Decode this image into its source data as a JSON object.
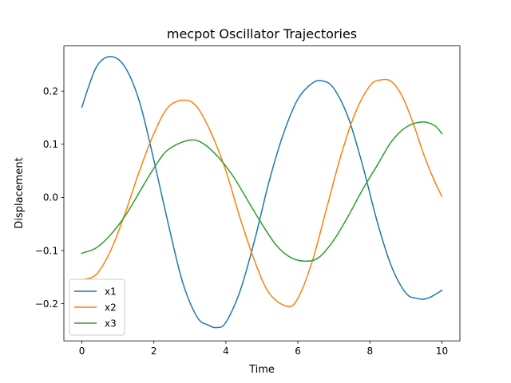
{
  "chart_data": {
    "type": "line",
    "title": "mecpot Oscillator Trajectories",
    "xlabel": "Time",
    "ylabel": "Displacement",
    "xlim": [
      -0.5,
      10.5
    ],
    "ylim": [
      -0.27,
      0.285
    ],
    "x_ticks": [
      0,
      2,
      4,
      6,
      8,
      10
    ],
    "x_tick_labels": [
      "0",
      "2",
      "4",
      "6",
      "8",
      "10"
    ],
    "y_ticks": [
      -0.2,
      -0.1,
      0.0,
      0.1,
      0.2
    ],
    "y_tick_labels": [
      "−0.2",
      "−0.1",
      "0.0",
      "0.1",
      "0.2"
    ],
    "grid": false,
    "legend_position": "lower-left",
    "series": [
      {
        "name": "x1",
        "color": "#1f77b4",
        "x": [
          0,
          0.4,
          0.8,
          1.2,
          1.6,
          2.0,
          2.4,
          2.8,
          3.2,
          3.5,
          3.75,
          4.0,
          4.4,
          4.8,
          5.2,
          5.6,
          6.0,
          6.4,
          6.7,
          7.0,
          7.4,
          7.8,
          8.2,
          8.6,
          9.0,
          9.3,
          9.6,
          10.0
        ],
        "y": [
          0.17,
          0.245,
          0.265,
          0.245,
          0.18,
          0.07,
          -0.05,
          -0.16,
          -0.225,
          -0.24,
          -0.245,
          -0.235,
          -0.175,
          -0.08,
          0.03,
          0.12,
          0.185,
          0.215,
          0.219,
          0.205,
          0.15,
          0.06,
          -0.045,
          -0.13,
          -0.18,
          -0.19,
          -0.19,
          -0.175
        ]
      },
      {
        "name": "x2",
        "color": "#ff7f0e",
        "x": [
          0,
          0.4,
          0.8,
          1.2,
          1.6,
          2.0,
          2.4,
          2.85,
          3.2,
          3.6,
          4.0,
          4.4,
          4.8,
          5.2,
          5.7,
          6.0,
          6.4,
          6.8,
          7.2,
          7.6,
          8.0,
          8.3,
          8.6,
          8.9,
          9.2,
          9.5,
          9.8,
          10.0
        ],
        "y": [
          -0.155,
          -0.145,
          -0.1,
          -0.03,
          0.05,
          0.12,
          0.17,
          0.183,
          0.17,
          0.12,
          0.05,
          -0.04,
          -0.12,
          -0.18,
          -0.205,
          -0.19,
          -0.12,
          -0.02,
          0.08,
          0.16,
          0.21,
          0.221,
          0.218,
          0.19,
          0.14,
          0.08,
          0.03,
          0.002
        ]
      },
      {
        "name": "x3",
        "color": "#2ca02c",
        "x": [
          0,
          0.4,
          0.8,
          1.2,
          1.6,
          2.0,
          2.4,
          3.0,
          3.4,
          3.8,
          4.2,
          4.6,
          5.0,
          5.4,
          5.8,
          6.25,
          6.6,
          7.0,
          7.4,
          7.8,
          8.2,
          8.6,
          9.0,
          9.45,
          9.8,
          10.0
        ],
        "y": [
          -0.105,
          -0.095,
          -0.07,
          -0.035,
          0.01,
          0.055,
          0.09,
          0.108,
          0.1,
          0.075,
          0.04,
          -0.005,
          -0.05,
          -0.09,
          -0.113,
          -0.12,
          -0.112,
          -0.08,
          -0.035,
          0.015,
          0.06,
          0.105,
          0.132,
          0.142,
          0.135,
          0.12
        ]
      }
    ]
  }
}
